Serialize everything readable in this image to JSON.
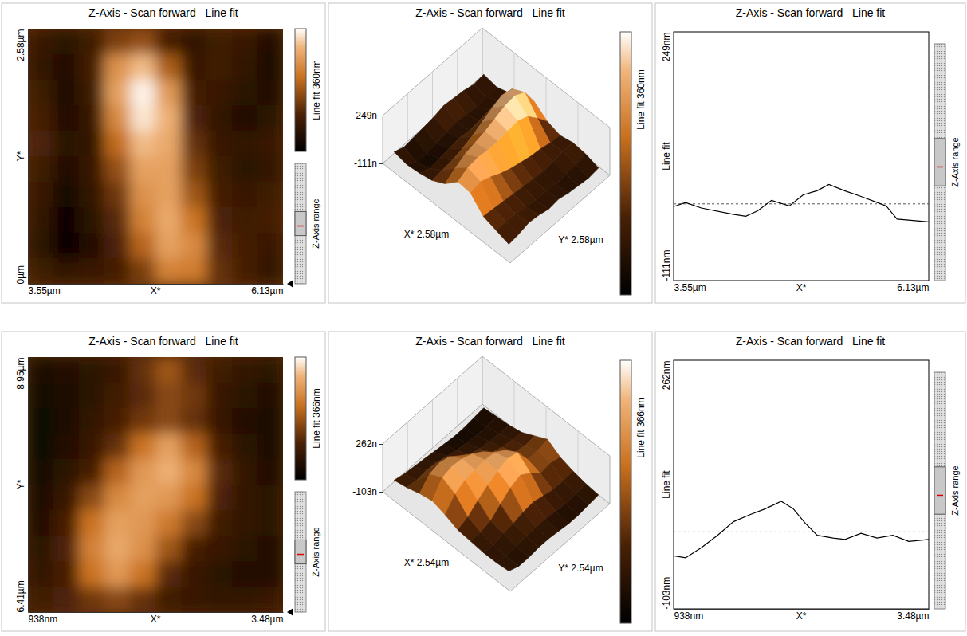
{
  "chart_data": [
    {
      "type": "heatmap",
      "title": "Z-Axis - Scan forward   Line fit",
      "x_label": "X*",
      "y_label": "Y*",
      "xlim": [
        3.55,
        6.13
      ],
      "xticks": [
        {
          "value": 3.55,
          "label": "3.55µm"
        },
        {
          "value": 6.13,
          "label": "6.13µm"
        }
      ],
      "ylim": [
        0,
        2.58
      ],
      "yticks": [
        {
          "value": 0,
          "label": "0µm"
        },
        {
          "value": 2.58,
          "label": "2.58µm"
        }
      ],
      "z": [
        [
          -30,
          -50,
          -20,
          40,
          60,
          -10,
          -40,
          -20,
          -30,
          -60
        ],
        [
          -40,
          -60,
          -10,
          150,
          200,
          80,
          -30,
          -20,
          -40,
          -70
        ],
        [
          -20,
          -70,
          -20,
          170,
          240,
          160,
          -10,
          -30,
          -50,
          -60
        ],
        [
          -10,
          -60,
          -30,
          140,
          230,
          190,
          0,
          -40,
          -60,
          -50
        ],
        [
          0,
          -50,
          -40,
          100,
          200,
          180,
          20,
          -30,
          -40,
          -30
        ],
        [
          -20,
          -60,
          -30,
          60,
          170,
          170,
          40,
          -20,
          -50,
          -40
        ],
        [
          -30,
          -80,
          -40,
          30,
          150,
          170,
          70,
          -10,
          -30,
          -20
        ],
        [
          -40,
          -90,
          -50,
          10,
          130,
          180,
          110,
          0,
          -20,
          -10
        ],
        [
          -50,
          -90,
          -60,
          0,
          90,
          170,
          140,
          10,
          -10,
          -30
        ],
        [
          -20,
          -40,
          -30,
          -10,
          40,
          130,
          120,
          20,
          -10,
          -40
        ]
      ],
      "colorbar_label": "Line fit 360nm",
      "colorbar_range": [
        -111,
        249
      ],
      "range_label": "Z-Axis range"
    },
    {
      "type": "surface3d",
      "title": "Z-Axis - Scan forward   Line fit",
      "x_label": "X* 2.58µm",
      "y_label": "Y* 2.58µm",
      "zlim": [
        -111,
        249
      ],
      "zticks": [
        {
          "value": -111,
          "label": "-111n"
        },
        {
          "value": 249,
          "label": "249n"
        }
      ],
      "z": [
        [
          -30,
          -50,
          -20,
          40,
          60,
          -10,
          -40,
          -20,
          -30,
          -60
        ],
        [
          -40,
          -60,
          -10,
          150,
          200,
          80,
          -30,
          -20,
          -40,
          -70
        ],
        [
          -20,
          -70,
          -20,
          170,
          240,
          160,
          -10,
          -30,
          -50,
          -60
        ],
        [
          -10,
          -60,
          -30,
          140,
          230,
          190,
          0,
          -40,
          -60,
          -50
        ],
        [
          0,
          -50,
          -40,
          100,
          200,
          180,
          20,
          -30,
          -40,
          -30
        ],
        [
          -20,
          -60,
          -30,
          60,
          170,
          170,
          40,
          -20,
          -50,
          -40
        ],
        [
          -30,
          -80,
          -40,
          30,
          150,
          170,
          70,
          -10,
          -30,
          -20
        ],
        [
          -40,
          -90,
          -50,
          10,
          130,
          180,
          110,
          0,
          -20,
          -10
        ],
        [
          -50,
          -90,
          -60,
          0,
          90,
          170,
          140,
          10,
          -10,
          -30
        ],
        [
          -20,
          -40,
          -30,
          -10,
          40,
          130,
          120,
          20,
          -10,
          -40
        ]
      ],
      "colorbar_label": "Line fit 360nm",
      "colorbar_range": [
        -111,
        249
      ]
    },
    {
      "type": "line",
      "title": "Z-Axis - Scan forward   Line fit",
      "x_label": "X*",
      "y_label": "Line fit",
      "xlim": [
        3.55,
        6.13
      ],
      "xticks": [
        {
          "value": 3.55,
          "label": "3.55µm"
        },
        {
          "value": 6.13,
          "label": "6.13µm"
        }
      ],
      "ylim": [
        -111,
        249
      ],
      "yticks": [
        {
          "value": -111,
          "label": "-111nm"
        },
        {
          "value": 249,
          "label": "249nm"
        }
      ],
      "x": [
        3.55,
        3.67,
        3.83,
        4.15,
        4.28,
        4.4,
        4.54,
        4.72,
        4.86,
        5.0,
        5.12,
        5.28,
        5.44,
        5.61,
        5.7,
        5.81,
        5.97,
        6.13
      ],
      "values": [
        -4,
        2,
        -6,
        -15,
        -18,
        -10,
        5,
        -3,
        13,
        19,
        28,
        19,
        11,
        2,
        -3,
        -22,
        -24,
        -26
      ],
      "reference_line": 0,
      "line_style": "solid",
      "color": "#000000",
      "range_label": "Z-Axis range"
    },
    {
      "type": "heatmap",
      "title": "Z-Axis - Scan forward   Line fit",
      "x_label": "X*",
      "y_label": "Y*",
      "xlim": [
        0.938,
        3.48
      ],
      "xticks": [
        {
          "value": 0.938,
          "label": "938nm"
        },
        {
          "value": 3.48,
          "label": "3.48µm"
        }
      ],
      "ylim": [
        6.41,
        8.95
      ],
      "yticks": [
        {
          "value": 6.41,
          "label": "6.41µm"
        },
        {
          "value": 8.95,
          "label": "8.95µm"
        }
      ],
      "z": [
        [
          -60,
          -50,
          -40,
          -20,
          30,
          80,
          20,
          -10,
          -30,
          -40
        ],
        [
          -70,
          -60,
          -40,
          -10,
          20,
          60,
          40,
          -20,
          -40,
          -50
        ],
        [
          -80,
          -60,
          -30,
          0,
          40,
          60,
          30,
          -20,
          -50,
          -60
        ],
        [
          -80,
          -50,
          -20,
          30,
          120,
          180,
          100,
          0,
          -40,
          -60
        ],
        [
          -70,
          -40,
          0,
          100,
          170,
          200,
          150,
          20,
          -30,
          -50
        ],
        [
          -60,
          -20,
          60,
          150,
          180,
          170,
          120,
          10,
          -30,
          -40
        ],
        [
          -50,
          0,
          120,
          180,
          170,
          130,
          60,
          -10,
          -30,
          -40
        ],
        [
          -40,
          10,
          140,
          190,
          160,
          80,
          0,
          -20,
          -40,
          -50
        ],
        [
          -30,
          0,
          120,
          170,
          120,
          20,
          -20,
          -40,
          -50,
          -50
        ],
        [
          -10,
          10,
          40,
          60,
          30,
          -10,
          -20,
          -30,
          -30,
          -20
        ]
      ],
      "colorbar_label": "Line fit 366nm",
      "colorbar_range": [
        -103,
        262
      ],
      "range_label": "Z-Axis range"
    },
    {
      "type": "surface3d",
      "title": "Z-Axis - Scan forward   Line fit",
      "x_label": "X* 2.54µm",
      "y_label": "Y* 2.54µm",
      "zlim": [
        -103,
        262
      ],
      "zticks": [
        {
          "value": -103,
          "label": "-103n"
        },
        {
          "value": 262,
          "label": "262n"
        }
      ],
      "z": [
        [
          -60,
          -50,
          -40,
          -20,
          30,
          80,
          20,
          -10,
          -30,
          -40
        ],
        [
          -70,
          -60,
          -40,
          -10,
          20,
          60,
          40,
          -20,
          -40,
          -50
        ],
        [
          -80,
          -60,
          -30,
          0,
          40,
          60,
          30,
          -20,
          -50,
          -60
        ],
        [
          -80,
          -50,
          -20,
          30,
          120,
          180,
          100,
          0,
          -40,
          -60
        ],
        [
          -70,
          -40,
          0,
          100,
          170,
          200,
          150,
          20,
          -30,
          -50
        ],
        [
          -60,
          -20,
          60,
          150,
          180,
          170,
          120,
          10,
          -30,
          -40
        ],
        [
          -50,
          0,
          120,
          180,
          170,
          130,
          60,
          -10,
          -30,
          -40
        ],
        [
          -40,
          10,
          140,
          190,
          160,
          80,
          0,
          -20,
          -40,
          -50
        ],
        [
          -30,
          0,
          120,
          170,
          120,
          20,
          -20,
          -40,
          -50,
          -50
        ],
        [
          -10,
          10,
          40,
          60,
          30,
          -10,
          -20,
          -30,
          -30,
          -20
        ]
      ],
      "colorbar_label": "Line fit 366nm",
      "colorbar_range": [
        -103,
        262
      ]
    },
    {
      "type": "line",
      "title": "Z-Axis - Scan forward   Line fit",
      "x_label": "X*",
      "y_label": "Line fit",
      "xlim": [
        0.938,
        3.48
      ],
      "xticks": [
        {
          "value": 0.938,
          "label": "938nm"
        },
        {
          "value": 3.48,
          "label": "3.48µm"
        }
      ],
      "ylim": [
        -103,
        262
      ],
      "yticks": [
        {
          "value": -103,
          "label": "-103nm"
        },
        {
          "value": 262,
          "label": "262nm"
        }
      ],
      "x": [
        0.938,
        1.057,
        1.216,
        1.375,
        1.534,
        1.693,
        1.852,
        2.01,
        2.13,
        2.249,
        2.368,
        2.527,
        2.646,
        2.805,
        2.964,
        3.123,
        3.281,
        3.48
      ],
      "values": [
        -25,
        -28,
        -13,
        5,
        25,
        35,
        44,
        55,
        44,
        23,
        5,
        1,
        -1,
        8,
        1,
        5,
        -4,
        -1
      ],
      "reference_line": 10,
      "line_style": "solid",
      "color": "#000000",
      "range_label": "Z-Axis range"
    }
  ]
}
